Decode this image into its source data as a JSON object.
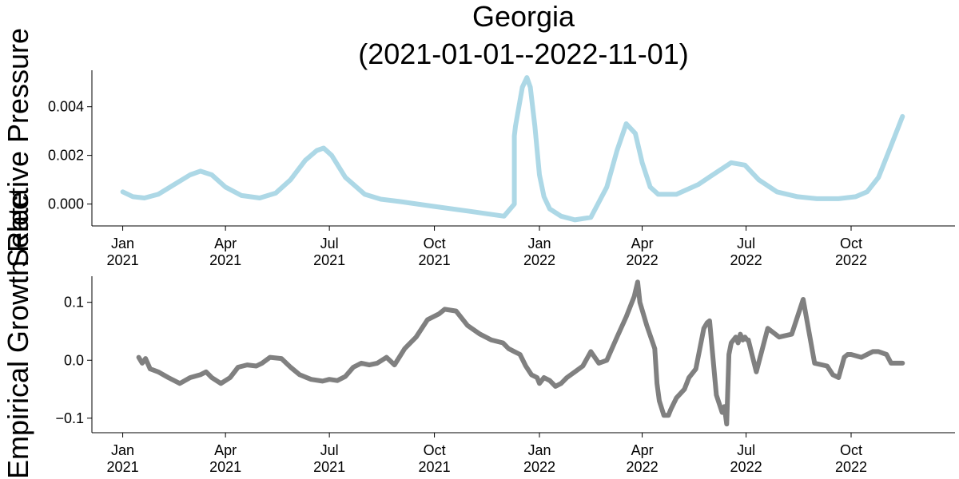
{
  "chart_data": {
    "title_line1": "Georgia",
    "title_line2": "(2021-01-01--2022-11-01)",
    "x_ticks": [
      {
        "date": "2021-01-01",
        "line1": "Jan",
        "line2": "2021"
      },
      {
        "date": "2021-04-01",
        "line1": "Apr",
        "line2": "2021"
      },
      {
        "date": "2021-07-01",
        "line1": "Jul",
        "line2": "2021"
      },
      {
        "date": "2021-10-01",
        "line1": "Oct",
        "line2": "2021"
      },
      {
        "date": "2022-01-01",
        "line1": "Jan",
        "line2": "2022"
      },
      {
        "date": "2022-04-01",
        "line1": "Apr",
        "line2": "2022"
      },
      {
        "date": "2022-07-01",
        "line1": "Jul",
        "line2": "2022"
      },
      {
        "date": "2022-10-01",
        "line1": "Oct",
        "line2": "2022"
      }
    ],
    "xlim": [
      "2020-12-05",
      "2022-12-31"
    ],
    "panels": [
      {
        "type": "line",
        "ylabel": "Selective Pressure",
        "color": "#add8e6",
        "ylim": [
          -0.0009,
          0.0055
        ],
        "yticks": [
          {
            "value": 0.0,
            "label": "0.000"
          },
          {
            "value": 0.002,
            "label": "0.002"
          },
          {
            "value": 0.004,
            "label": "0.004"
          }
        ],
        "series": [
          {
            "x": [
              "2021-01-01",
              "2021-01-10",
              "2021-01-20",
              "2021-02-01",
              "2021-02-15",
              "2021-03-01",
              "2021-03-10",
              "2021-03-20",
              "2021-04-01",
              "2021-04-15",
              "2021-05-01",
              "2021-05-15",
              "2021-05-28",
              "2021-06-10",
              "2021-06-20",
              "2021-06-26",
              "2021-07-03",
              "2021-07-15",
              "2021-08-01",
              "2021-08-15",
              "2021-09-01",
              "2021-10-01",
              "2021-11-01",
              "2021-12-01",
              "2021-12-10",
              "2021-12-10",
              "2021-12-11",
              "2021-12-17",
              "2021-12-21",
              "2021-12-24",
              "2021-12-28",
              "2022-01-01",
              "2022-01-05",
              "2022-01-10",
              "2022-01-20",
              "2022-02-01",
              "2022-02-15",
              "2022-03-01",
              "2022-03-10",
              "2022-03-18",
              "2022-03-26",
              "2022-04-01",
              "2022-04-08",
              "2022-04-15",
              "2022-05-01",
              "2022-05-20",
              "2022-06-05",
              "2022-06-18",
              "2022-06-30",
              "2022-07-12",
              "2022-07-28",
              "2022-08-15",
              "2022-09-01",
              "2022-09-20",
              "2022-10-05",
              "2022-10-15",
              "2022-10-25",
              "2022-11-05",
              "2022-11-15"
            ],
            "y": [
              0.0005,
              0.0003,
              0.00025,
              0.0004,
              0.0008,
              0.0012,
              0.00135,
              0.0012,
              0.0007,
              0.00035,
              0.00025,
              0.00045,
              0.001,
              0.0018,
              0.0022,
              0.0023,
              0.002,
              0.0011,
              0.0004,
              0.0002,
              0.0001,
              -0.0001,
              -0.0003,
              -0.0005,
              0.0,
              0.0028,
              0.0032,
              0.0048,
              0.0052,
              0.0048,
              0.0032,
              0.0012,
              0.0003,
              -0.0002,
              -0.0005,
              -0.00065,
              -0.00055,
              0.0007,
              0.0022,
              0.0033,
              0.0029,
              0.0017,
              0.0007,
              0.0004,
              0.0004,
              0.0008,
              0.0013,
              0.0017,
              0.0016,
              0.001,
              0.0005,
              0.0003,
              0.00022,
              0.00022,
              0.0003,
              0.0005,
              0.0011,
              0.0024,
              0.0036
            ]
          }
        ]
      },
      {
        "type": "line",
        "ylabel": "Empirical Growth Rate",
        "color": "#808080",
        "ylim": [
          -0.125,
          0.145
        ],
        "yticks": [
          {
            "value": -0.1,
            "label": "−0.1"
          },
          {
            "value": 0.0,
            "label": "0.0"
          },
          {
            "value": 0.1,
            "label": "0.1"
          }
        ],
        "series": [
          {
            "x": [
              "2021-01-15",
              "2021-01-18",
              "2021-01-21",
              "2021-01-25",
              "2021-02-01",
              "2021-02-10",
              "2021-02-20",
              "2021-03-01",
              "2021-03-10",
              "2021-03-15",
              "2021-03-20",
              "2021-03-28",
              "2021-04-05",
              "2021-04-12",
              "2021-04-20",
              "2021-04-28",
              "2021-05-03",
              "2021-05-10",
              "2021-05-20",
              "2021-05-28",
              "2021-06-05",
              "2021-06-15",
              "2021-06-25",
              "2021-07-01",
              "2021-07-08",
              "2021-07-15",
              "2021-07-22",
              "2021-07-29",
              "2021-08-05",
              "2021-08-12",
              "2021-08-20",
              "2021-08-27",
              "2021-09-05",
              "2021-09-15",
              "2021-09-25",
              "2021-10-05",
              "2021-10-10",
              "2021-10-20",
              "2021-10-30",
              "2021-11-10",
              "2021-11-20",
              "2021-11-30",
              "2021-12-05",
              "2021-12-10",
              "2021-12-15",
              "2021-12-20",
              "2021-12-25",
              "2021-12-30",
              "2022-01-01",
              "2022-01-05",
              "2022-01-10",
              "2022-01-15",
              "2022-01-20",
              "2022-01-25",
              "2022-02-01",
              "2022-02-08",
              "2022-02-15",
              "2022-02-22",
              "2022-03-01",
              "2022-03-10",
              "2022-03-18",
              "2022-03-25",
              "2022-03-28",
              "2022-03-30",
              "2022-04-05",
              "2022-04-12",
              "2022-04-14",
              "2022-04-16",
              "2022-04-20",
              "2022-04-24",
              "2022-04-26",
              "2022-05-01",
              "2022-05-08",
              "2022-05-12",
              "2022-05-14",
              "2022-05-18",
              "2022-05-25",
              "2022-05-28",
              "2022-05-30",
              "2022-06-05",
              "2022-06-10",
              "2022-06-12",
              "2022-06-14",
              "2022-06-16",
              "2022-06-18",
              "2022-06-22",
              "2022-06-24",
              "2022-06-26",
              "2022-06-28",
              "2022-06-30",
              "2022-07-02",
              "2022-07-03",
              "2022-07-10",
              "2022-07-20",
              "2022-07-30",
              "2022-08-10",
              "2022-08-20",
              "2022-08-30",
              "2022-09-10",
              "2022-09-15",
              "2022-09-20",
              "2022-09-25",
              "2022-09-28",
              "2022-10-01",
              "2022-10-10",
              "2022-10-20",
              "2022-10-25",
              "2022-11-01",
              "2022-11-05",
              "2022-11-15"
            ],
            "y": [
              0.005,
              -0.005,
              0.003,
              -0.015,
              -0.02,
              -0.03,
              -0.04,
              -0.03,
              -0.025,
              -0.02,
              -0.03,
              -0.04,
              -0.03,
              -0.012,
              -0.008,
              -0.01,
              -0.005,
              0.005,
              0.003,
              -0.012,
              -0.025,
              -0.033,
              -0.036,
              -0.033,
              -0.035,
              -0.028,
              -0.012,
              -0.005,
              -0.008,
              -0.005,
              0.005,
              -0.008,
              0.02,
              0.04,
              0.07,
              0.08,
              0.088,
              0.085,
              0.06,
              0.045,
              0.035,
              0.03,
              0.02,
              0.015,
              0.01,
              -0.01,
              -0.025,
              -0.03,
              -0.04,
              -0.03,
              -0.035,
              -0.045,
              -0.04,
              -0.03,
              -0.02,
              -0.01,
              0.015,
              -0.005,
              0.0,
              0.04,
              0.075,
              0.11,
              0.135,
              0.1,
              0.06,
              0.02,
              -0.04,
              -0.07,
              -0.095,
              -0.095,
              -0.085,
              -0.065,
              -0.05,
              -0.03,
              -0.025,
              -0.015,
              0.055,
              0.065,
              0.068,
              -0.06,
              -0.09,
              -0.08,
              -0.11,
              0.01,
              0.03,
              0.04,
              0.03,
              0.045,
              0.035,
              0.04,
              0.035,
              0.035,
              -0.02,
              0.055,
              0.04,
              0.045,
              0.105,
              -0.005,
              -0.01,
              -0.025,
              -0.03,
              0.005,
              0.01,
              0.01,
              0.005,
              0.015,
              0.015,
              0.01,
              -0.005,
              -0.005
            ]
          }
        ]
      }
    ]
  }
}
